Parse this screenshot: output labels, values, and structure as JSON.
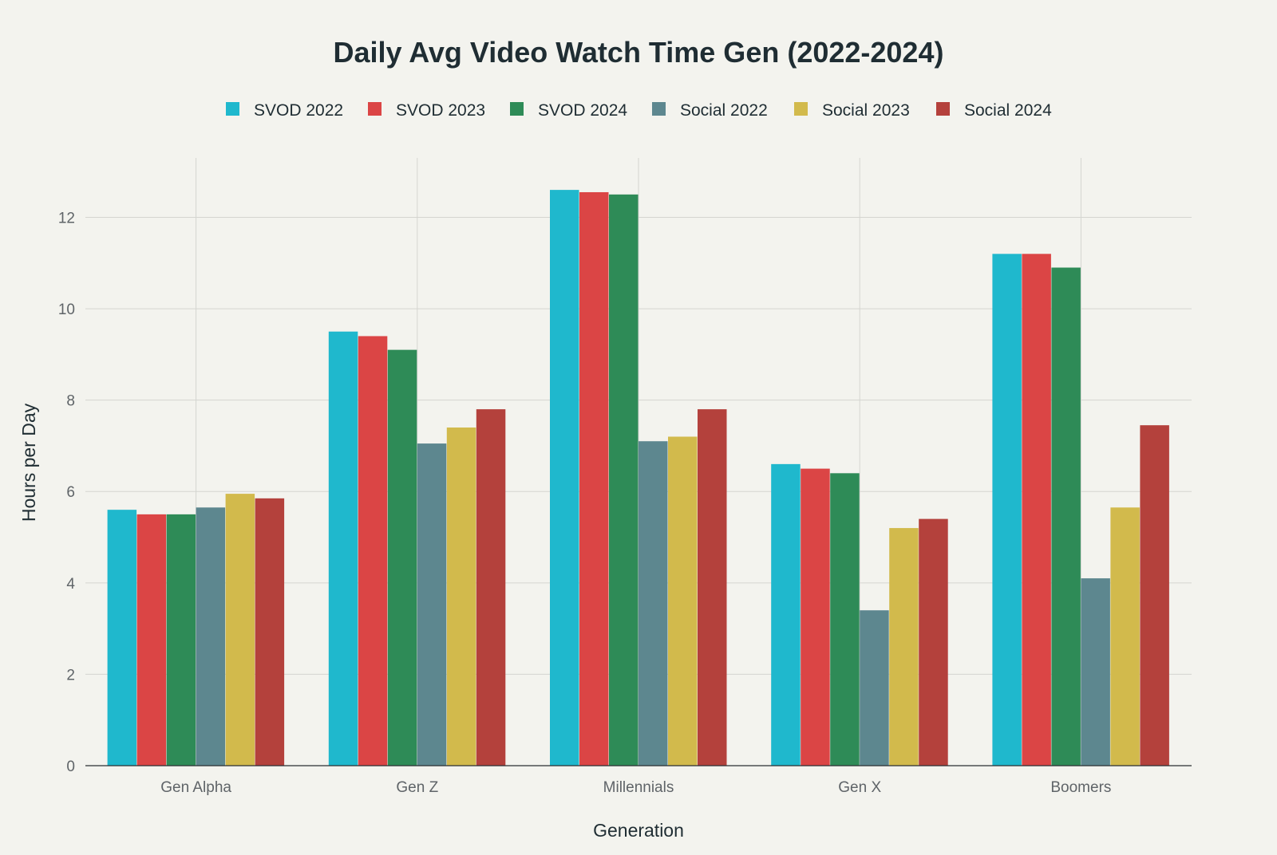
{
  "chart_data": {
    "type": "bar",
    "title": "Daily Avg Video Watch Time Gen (2022-2024)",
    "xlabel": "Generation",
    "ylabel": "Hours per Day",
    "ylim": [
      0,
      13.3
    ],
    "yticks": [
      0,
      2,
      4,
      6,
      8,
      10,
      12
    ],
    "grid": true,
    "legend_position": "top-center",
    "categories": [
      "Gen Alpha",
      "Gen Z",
      "Millennials",
      "Gen X",
      "Boomers"
    ],
    "series": [
      {
        "name": "SVOD 2022",
        "color": "#1fb8cd",
        "values": [
          5.6,
          9.5,
          12.6,
          6.6,
          11.2
        ]
      },
      {
        "name": "SVOD 2023",
        "color": "#db4545",
        "values": [
          5.5,
          9.4,
          12.55,
          6.5,
          11.2
        ]
      },
      {
        "name": "SVOD 2024",
        "color": "#2e8b57",
        "values": [
          5.5,
          9.1,
          12.5,
          6.4,
          10.9
        ]
      },
      {
        "name": "Social 2022",
        "color": "#5d878f",
        "values": [
          5.65,
          7.05,
          7.1,
          3.4,
          4.1
        ]
      },
      {
        "name": "Social 2023",
        "color": "#d2ba4c",
        "values": [
          5.95,
          7.4,
          7.2,
          5.2,
          5.65
        ]
      },
      {
        "name": "Social 2024",
        "color": "#b4413c",
        "values": [
          5.85,
          7.8,
          7.8,
          5.4,
          7.45
        ]
      }
    ]
  }
}
